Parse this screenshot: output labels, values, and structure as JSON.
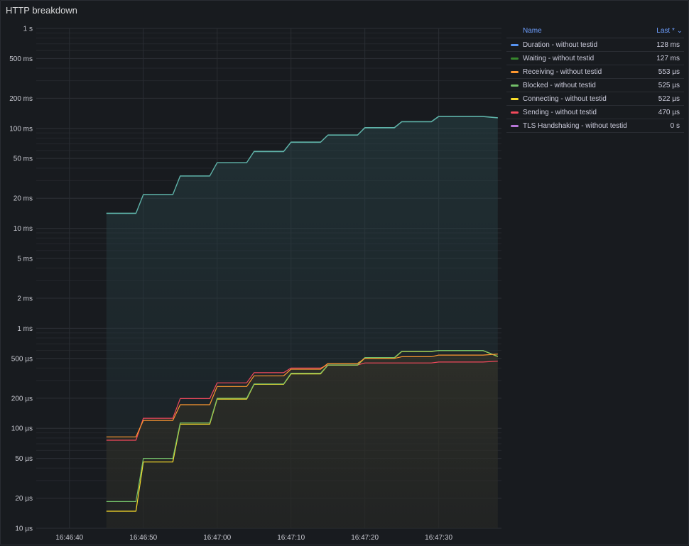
{
  "panel": {
    "title": "HTTP breakdown"
  },
  "legend": {
    "name_header": "Name",
    "last_header": "Last * ⌄",
    "items": [
      {
        "name": "Duration - without testid",
        "last": "128 ms",
        "color": "#5794f2"
      },
      {
        "name": "Waiting - without testid",
        "last": "127 ms",
        "color": "#37872d"
      },
      {
        "name": "Receiving - without testid",
        "last": "553 µs",
        "color": "#ff9830"
      },
      {
        "name": "Blocked - without testid",
        "last": "525 µs",
        "color": "#73bf69"
      },
      {
        "name": "Connecting - without testid",
        "last": "522 µs",
        "color": "#fade2a"
      },
      {
        "name": "Sending - without testid",
        "last": "470 µs",
        "color": "#f2495c"
      },
      {
        "name": "TLS Handshaking - without testid",
        "last": "0 s",
        "color": "#b877d9"
      }
    ]
  },
  "chart_data": {
    "type": "line",
    "title": "HTTP breakdown",
    "yscale": "log",
    "ylim_seconds": [
      1e-05,
      1
    ],
    "y_ticks": [
      {
        "v": 1,
        "label": "1 s"
      },
      {
        "v": 0.5,
        "label": "500 ms"
      },
      {
        "v": 0.2,
        "label": "200 ms"
      },
      {
        "v": 0.1,
        "label": "100 ms"
      },
      {
        "v": 0.05,
        "label": "50 ms"
      },
      {
        "v": 0.02,
        "label": "20 ms"
      },
      {
        "v": 0.01,
        "label": "10 ms"
      },
      {
        "v": 0.005,
        "label": "5 ms"
      },
      {
        "v": 0.002,
        "label": "2 ms"
      },
      {
        "v": 0.001,
        "label": "1 ms"
      },
      {
        "v": 0.0005,
        "label": "500 µs"
      },
      {
        "v": 0.0002,
        "label": "200 µs"
      },
      {
        "v": 0.0001,
        "label": "100 µs"
      },
      {
        "v": 5e-05,
        "label": "50 µs"
      },
      {
        "v": 2e-05,
        "label": "20 µs"
      },
      {
        "v": 1e-05,
        "label": "10 µs"
      }
    ],
    "x_ticks": [
      "16:46:40",
      "16:46:50",
      "16:47:00",
      "16:47:10",
      "16:47:20",
      "16:47:30"
    ],
    "xlim": [
      "16:46:35.5",
      "16:47:38.5"
    ],
    "grid": true,
    "legend_position": "right",
    "series": [
      {
        "name": "Duration - without testid",
        "color": "#5794f2",
        "x": [
          "16:46:45",
          "16:46:49",
          "16:46:50",
          "16:46:54",
          "16:46:55",
          "16:46:59",
          "16:47:00",
          "16:47:04",
          "16:47:05",
          "16:47:09",
          "16:47:10",
          "16:47:14",
          "16:47:15",
          "16:47:19",
          "16:47:20",
          "16:47:24",
          "16:47:25",
          "16:47:29",
          "16:47:30",
          "16:47:36",
          "16:47:38"
        ],
        "y": [
          0.0142,
          0.0142,
          0.0218,
          0.0218,
          0.0335,
          0.0335,
          0.0455,
          0.0455,
          0.059,
          0.059,
          0.073,
          0.073,
          0.086,
          0.086,
          0.102,
          0.102,
          0.117,
          0.117,
          0.132,
          0.132,
          0.128
        ]
      },
      {
        "name": "Waiting - without testid",
        "color": "#37872d",
        "x": [
          "16:46:45",
          "16:46:49",
          "16:46:50",
          "16:46:54",
          "16:46:55",
          "16:46:59",
          "16:47:00",
          "16:47:04",
          "16:47:05",
          "16:47:09",
          "16:47:10",
          "16:47:14",
          "16:47:15",
          "16:47:19",
          "16:47:20",
          "16:47:24",
          "16:47:25",
          "16:47:29",
          "16:47:30",
          "16:47:36",
          "16:47:38"
        ],
        "y": [
          0.0141,
          0.0141,
          0.0217,
          0.0217,
          0.0333,
          0.0333,
          0.0453,
          0.0453,
          0.0585,
          0.0585,
          0.0725,
          0.0725,
          0.0855,
          0.0855,
          0.101,
          0.101,
          0.116,
          0.116,
          0.131,
          0.131,
          0.127
        ]
      },
      {
        "name": "Receiving - without testid",
        "color": "#ff9830",
        "x": [
          "16:46:45",
          "16:46:49",
          "16:46:50",
          "16:46:54",
          "16:46:55",
          "16:46:59",
          "16:47:00",
          "16:47:04",
          "16:47:05",
          "16:47:09",
          "16:47:10",
          "16:47:14",
          "16:47:15",
          "16:47:19",
          "16:47:20",
          "16:47:24",
          "16:47:25",
          "16:47:29",
          "16:47:30",
          "16:47:36",
          "16:47:38"
        ],
        "y": [
          8.2e-05,
          8.2e-05,
          0.00012,
          0.00012,
          0.000172,
          0.000172,
          0.000262,
          0.000262,
          0.000335,
          0.000335,
          0.00039,
          0.00039,
          0.000445,
          0.000445,
          0.0005,
          0.0005,
          0.00052,
          0.00052,
          0.00054,
          0.00054,
          0.000553
        ]
      },
      {
        "name": "Blocked - without testid",
        "color": "#73bf69",
        "x": [
          "16:46:45",
          "16:46:49",
          "16:46:50",
          "16:46:54",
          "16:46:55",
          "16:46:59",
          "16:47:00",
          "16:47:04",
          "16:47:05",
          "16:47:09",
          "16:47:10",
          "16:47:14",
          "16:47:15",
          "16:47:19",
          "16:47:20",
          "16:47:24",
          "16:47:25",
          "16:47:29",
          "16:47:30",
          "16:47:36",
          "16:47:38"
        ],
        "y": [
          1.85e-05,
          1.85e-05,
          5e-05,
          5e-05,
          0.000113,
          0.000113,
          0.0002,
          0.0002,
          0.000278,
          0.000278,
          0.000355,
          0.000355,
          0.00043,
          0.00043,
          0.00051,
          0.00051,
          0.00059,
          0.00059,
          0.0006,
          0.0006,
          0.000525
        ]
      },
      {
        "name": "Connecting - without testid",
        "color": "#fade2a",
        "x": [
          "16:46:45",
          "16:46:49",
          "16:46:50",
          "16:46:54",
          "16:46:55",
          "16:46:59",
          "16:47:00",
          "16:47:04",
          "16:47:05",
          "16:47:09",
          "16:47:10",
          "16:47:14",
          "16:47:15",
          "16:47:19",
          "16:47:20",
          "16:47:24",
          "16:47:25",
          "16:47:29",
          "16:47:30",
          "16:47:36",
          "16:47:38"
        ],
        "y": [
          1.48e-05,
          1.48e-05,
          4.6e-05,
          4.6e-05,
          0.00011,
          0.00011,
          0.000196,
          0.000196,
          0.000275,
          0.000275,
          0.00035,
          0.00035,
          0.000428,
          0.000428,
          0.000505,
          0.000505,
          0.000585,
          0.000585,
          0.000598,
          0.000598,
          0.000522
        ]
      },
      {
        "name": "Sending - without testid",
        "color": "#f2495c",
        "x": [
          "16:46:45",
          "16:46:49",
          "16:46:50",
          "16:46:54",
          "16:46:55",
          "16:46:59",
          "16:47:00",
          "16:47:04",
          "16:47:05",
          "16:47:09",
          "16:47:10",
          "16:47:14",
          "16:47:15",
          "16:47:19",
          "16:47:20",
          "16:47:24",
          "16:47:25",
          "16:47:29",
          "16:47:30",
          "16:47:36",
          "16:47:38"
        ],
        "y": [
          7.6e-05,
          7.6e-05,
          0.000126,
          0.000126,
          0.000198,
          0.000198,
          0.000285,
          0.000285,
          0.00036,
          0.00036,
          0.0004,
          0.0004,
          0.00043,
          0.00043,
          0.00045,
          0.00045,
          0.00045,
          0.00045,
          0.00046,
          0.00046,
          0.00047
        ]
      },
      {
        "name": "TLS Handshaking - without testid",
        "color": "#b877d9",
        "x": [],
        "y": []
      }
    ]
  }
}
